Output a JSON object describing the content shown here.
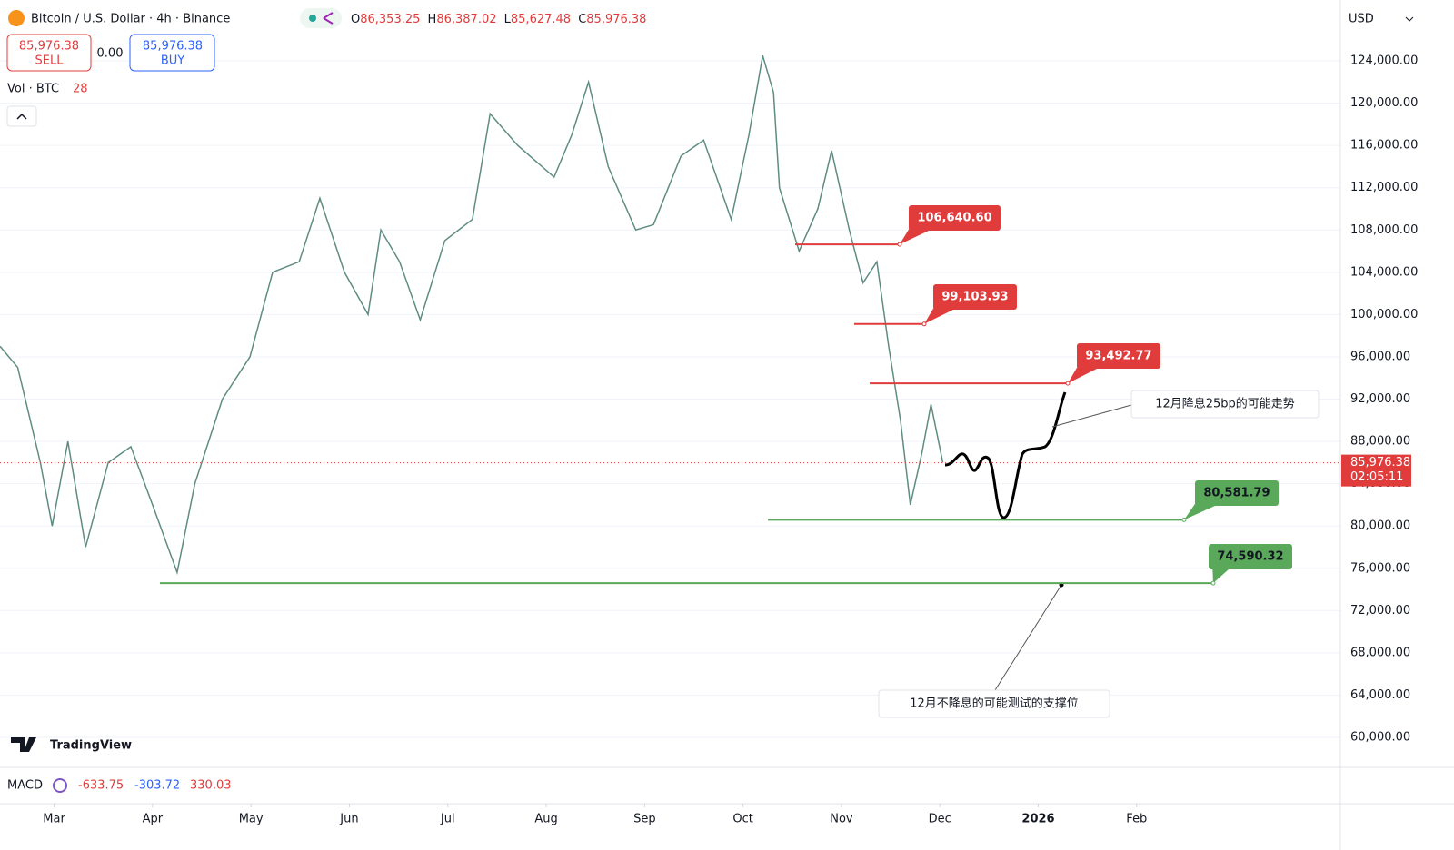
{
  "header": {
    "symbol": "Bitcoin / U.S. Dollar · 4h · Binance",
    "ohlc": [
      {
        "label": "O",
        "value": "86,353.25"
      },
      {
        "label": "H",
        "value": "86,387.02"
      },
      {
        "label": "L",
        "value": "85,627.48"
      },
      {
        "label": "C",
        "value": "85,976.38"
      }
    ],
    "sell": {
      "price": "85,976.38",
      "label": "SELL"
    },
    "spread": "0.00",
    "buy": {
      "price": "85,976.38",
      "label": "BUY"
    },
    "volume": {
      "label": "Vol · BTC",
      "value": "28"
    },
    "currency": "USD"
  },
  "macd": {
    "label": "MACD",
    "values": [
      "-633.75",
      "-303.72",
      "330.03"
    ]
  },
  "brand": "TradingView",
  "chart_data": {
    "type": "line",
    "series": [
      {
        "name": "BTCUSD",
        "color": "#5f8c82",
        "x": [
          2.45,
          2.63,
          2.86,
          2.98,
          3.14,
          3.32,
          3.55,
          3.78,
          4.0,
          4.25,
          4.43,
          4.71,
          4.99,
          5.22,
          5.49,
          5.7,
          5.95,
          6.19,
          6.32,
          6.51,
          6.72,
          6.97,
          7.25,
          7.43,
          7.71,
          8.08,
          8.26,
          8.43,
          8.63,
          8.91,
          9.09,
          9.37,
          9.6,
          9.88,
          10.06,
          10.2,
          10.31,
          10.37,
          10.57,
          10.76,
          10.9,
          11.08,
          11.22,
          11.36,
          11.48,
          11.6,
          11.7,
          11.82,
          11.91,
          12.03
        ],
        "values": [
          97000,
          95000,
          86000,
          80000,
          88000,
          78000,
          86000,
          87500,
          82000,
          75600,
          84000,
          92000,
          96000,
          104000,
          105000,
          111000,
          104000,
          100000,
          108000,
          105000,
          99500,
          107000,
          109000,
          119000,
          116000,
          113000,
          117000,
          122000,
          114000,
          108000,
          108500,
          115000,
          116500,
          109000,
          117000,
          124500,
          121000,
          112000,
          106000,
          110000,
          115500,
          108000,
          103000,
          105000,
          97000,
          90000,
          82000,
          87000,
          91500,
          86000
        ]
      }
    ],
    "xlim": [
      2.45,
      16.07
    ],
    "xticks": [
      {
        "value": 3,
        "label": "Mar"
      },
      {
        "value": 4,
        "label": "Apr"
      },
      {
        "value": 5,
        "label": "May"
      },
      {
        "value": 6,
        "label": "Jun"
      },
      {
        "value": 7,
        "label": "Jul"
      },
      {
        "value": 8,
        "label": "Aug"
      },
      {
        "value": 9,
        "label": "Sep"
      },
      {
        "value": 10,
        "label": "Oct"
      },
      {
        "value": 11,
        "label": "Nov"
      },
      {
        "value": 12,
        "label": "Dec"
      },
      {
        "value": 13,
        "label": "2026"
      },
      {
        "value": 14,
        "label": "Feb"
      }
    ],
    "ylim": [
      57165,
      129756
    ],
    "yticks": [
      {
        "value": 60000,
        "label": "60,000.00"
      },
      {
        "value": 64000,
        "label": "64,000.00"
      },
      {
        "value": 68000,
        "label": "68,000.00"
      },
      {
        "value": 72000,
        "label": "72,000.00"
      },
      {
        "value": 76000,
        "label": "76,000.00"
      },
      {
        "value": 80000,
        "label": "80,000.00"
      },
      {
        "value": 84000,
        "label": "84,000.00"
      },
      {
        "value": 88000,
        "label": "88,000.00"
      },
      {
        "value": 92000,
        "label": "92,000.00"
      },
      {
        "value": 96000,
        "label": "96,000.00"
      },
      {
        "value": 100000,
        "label": "100,000.00"
      },
      {
        "value": 104000,
        "label": "104,000.00"
      },
      {
        "value": 108000,
        "label": "108,000.00"
      },
      {
        "value": 112000,
        "label": "112,000.00"
      },
      {
        "value": 116000,
        "label": "116,000.00"
      },
      {
        "value": 120000,
        "label": "120,000.00"
      },
      {
        "value": 124000,
        "label": "124,000.00"
      }
    ],
    "grid": true,
    "last_price": {
      "value": 85976.38,
      "label": "85,976.38",
      "countdown": "02:05:11",
      "color": "#e03c3c"
    },
    "levels": [
      {
        "value": 106640.6,
        "label": "106,640.60",
        "color": "#e03c3c"
      },
      {
        "value": 99103.93,
        "label": "99,103.93",
        "color": "#e03c3c"
      },
      {
        "value": 93492.77,
        "label": "93,492.77",
        "color": "#e03c3c"
      },
      {
        "value": 80581.79,
        "label": "80,581.79",
        "color": "#5aa95a"
      },
      {
        "value": 74590.32,
        "label": "74,590.32",
        "color": "#5aa95a"
      }
    ],
    "annotations": [
      "12月降息25bp的可能走势",
      "12月不降息的可能测试的支撑位"
    ]
  }
}
